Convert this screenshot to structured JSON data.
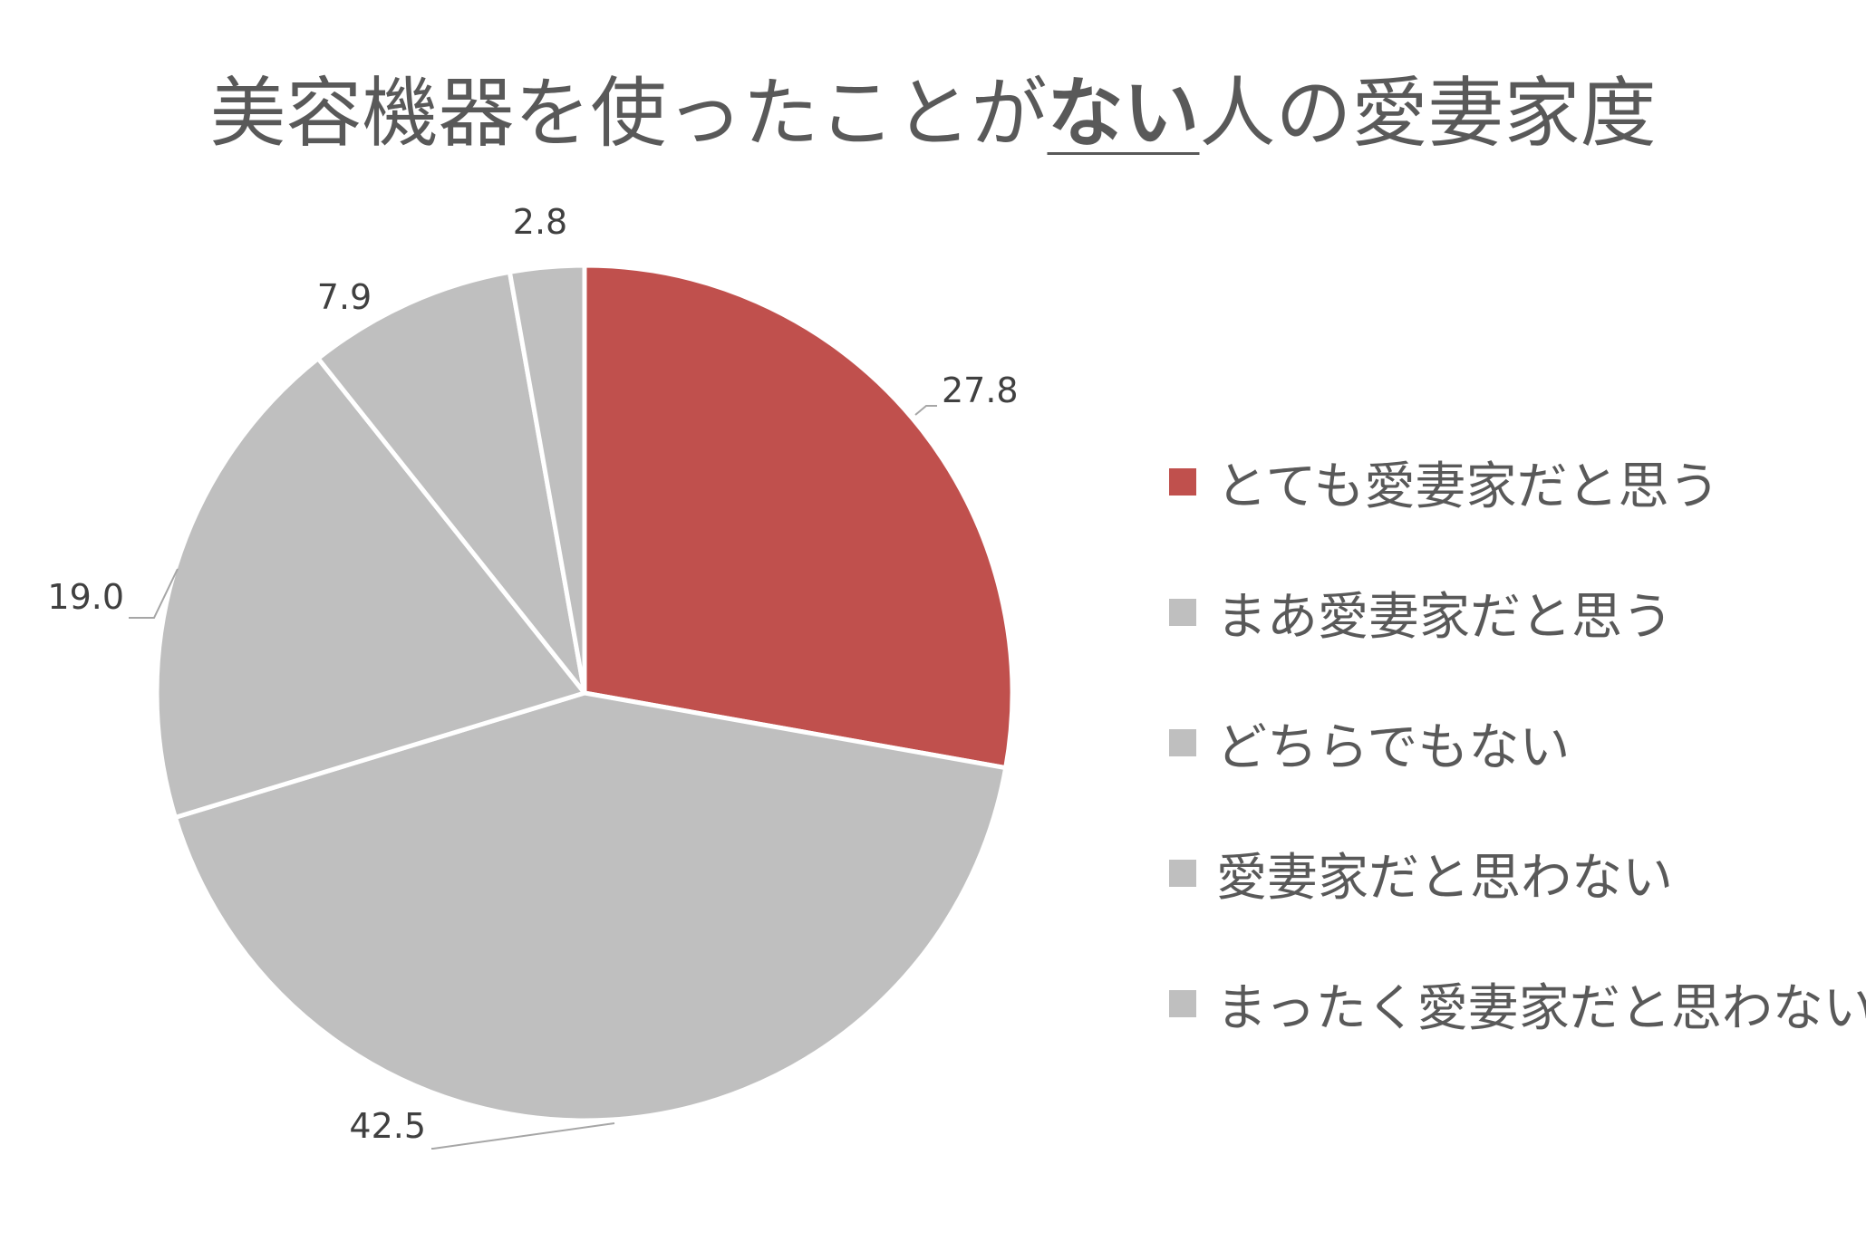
{
  "title": {
    "before": "美容機器を使ったことが",
    "emphasis": "ない",
    "after": "人の愛妻家度"
  },
  "chart_data": {
    "type": "pie",
    "categories": [
      "とても愛妻家だと思う",
      "まあ愛妻家だと思う",
      "どちらでもない",
      "愛妻家だと思わない",
      "まったく愛妻家だと思わない"
    ],
    "values": [
      27.8,
      42.5,
      19.0,
      7.9,
      2.8
    ],
    "value_labels": [
      "27.8",
      "42.5",
      "19.0",
      "7.9",
      "2.8"
    ],
    "colors": [
      "#C0504D",
      "#BFBFBF",
      "#BFBFBF",
      "#BFBFBF",
      "#BFBFBF"
    ],
    "legend_position": "right",
    "start_angle": "12 o'clock",
    "direction": "clockwise"
  }
}
